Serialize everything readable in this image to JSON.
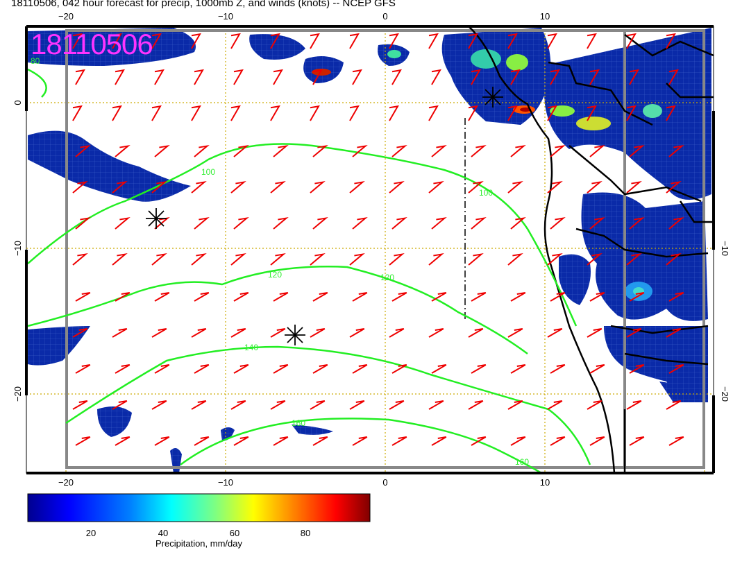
{
  "title": "18110506, 042 hour forecast for precip, 1000mb Z, and winds (knots) -- NCEP GFS",
  "stamp": "18110506",
  "axes": {
    "lon_ticks_bottom": [
      "−20",
      "−10",
      "0",
      "10"
    ],
    "lon_ticks_top": [
      "−20",
      "−10",
      "0",
      "10"
    ],
    "lat_ticks_left": [
      "0",
      "−10",
      "−20"
    ],
    "lat_ticks_right": [
      "−10",
      "−20"
    ]
  },
  "contours": {
    "label_100": "100",
    "label_100b": "100",
    "label_120": "120",
    "label_120b": "120",
    "label_140": "140",
    "label_160": "160",
    "label_160b": "160",
    "label_80": "80"
  },
  "colorbar": {
    "ticks": [
      "20",
      "40",
      "60",
      "80"
    ],
    "label": "Precipitation, mm/day",
    "colors": [
      "#00008f",
      "#0000ff",
      "#0080ff",
      "#00ffff",
      "#80ff80",
      "#ffff00",
      "#ff8000",
      "#ff0000",
      "#800000"
    ]
  },
  "colors": {
    "contour": "#22ee22",
    "wind_barb": "#ee0000",
    "grid": "#ccaa00",
    "stamp": "#ff33ff"
  }
}
